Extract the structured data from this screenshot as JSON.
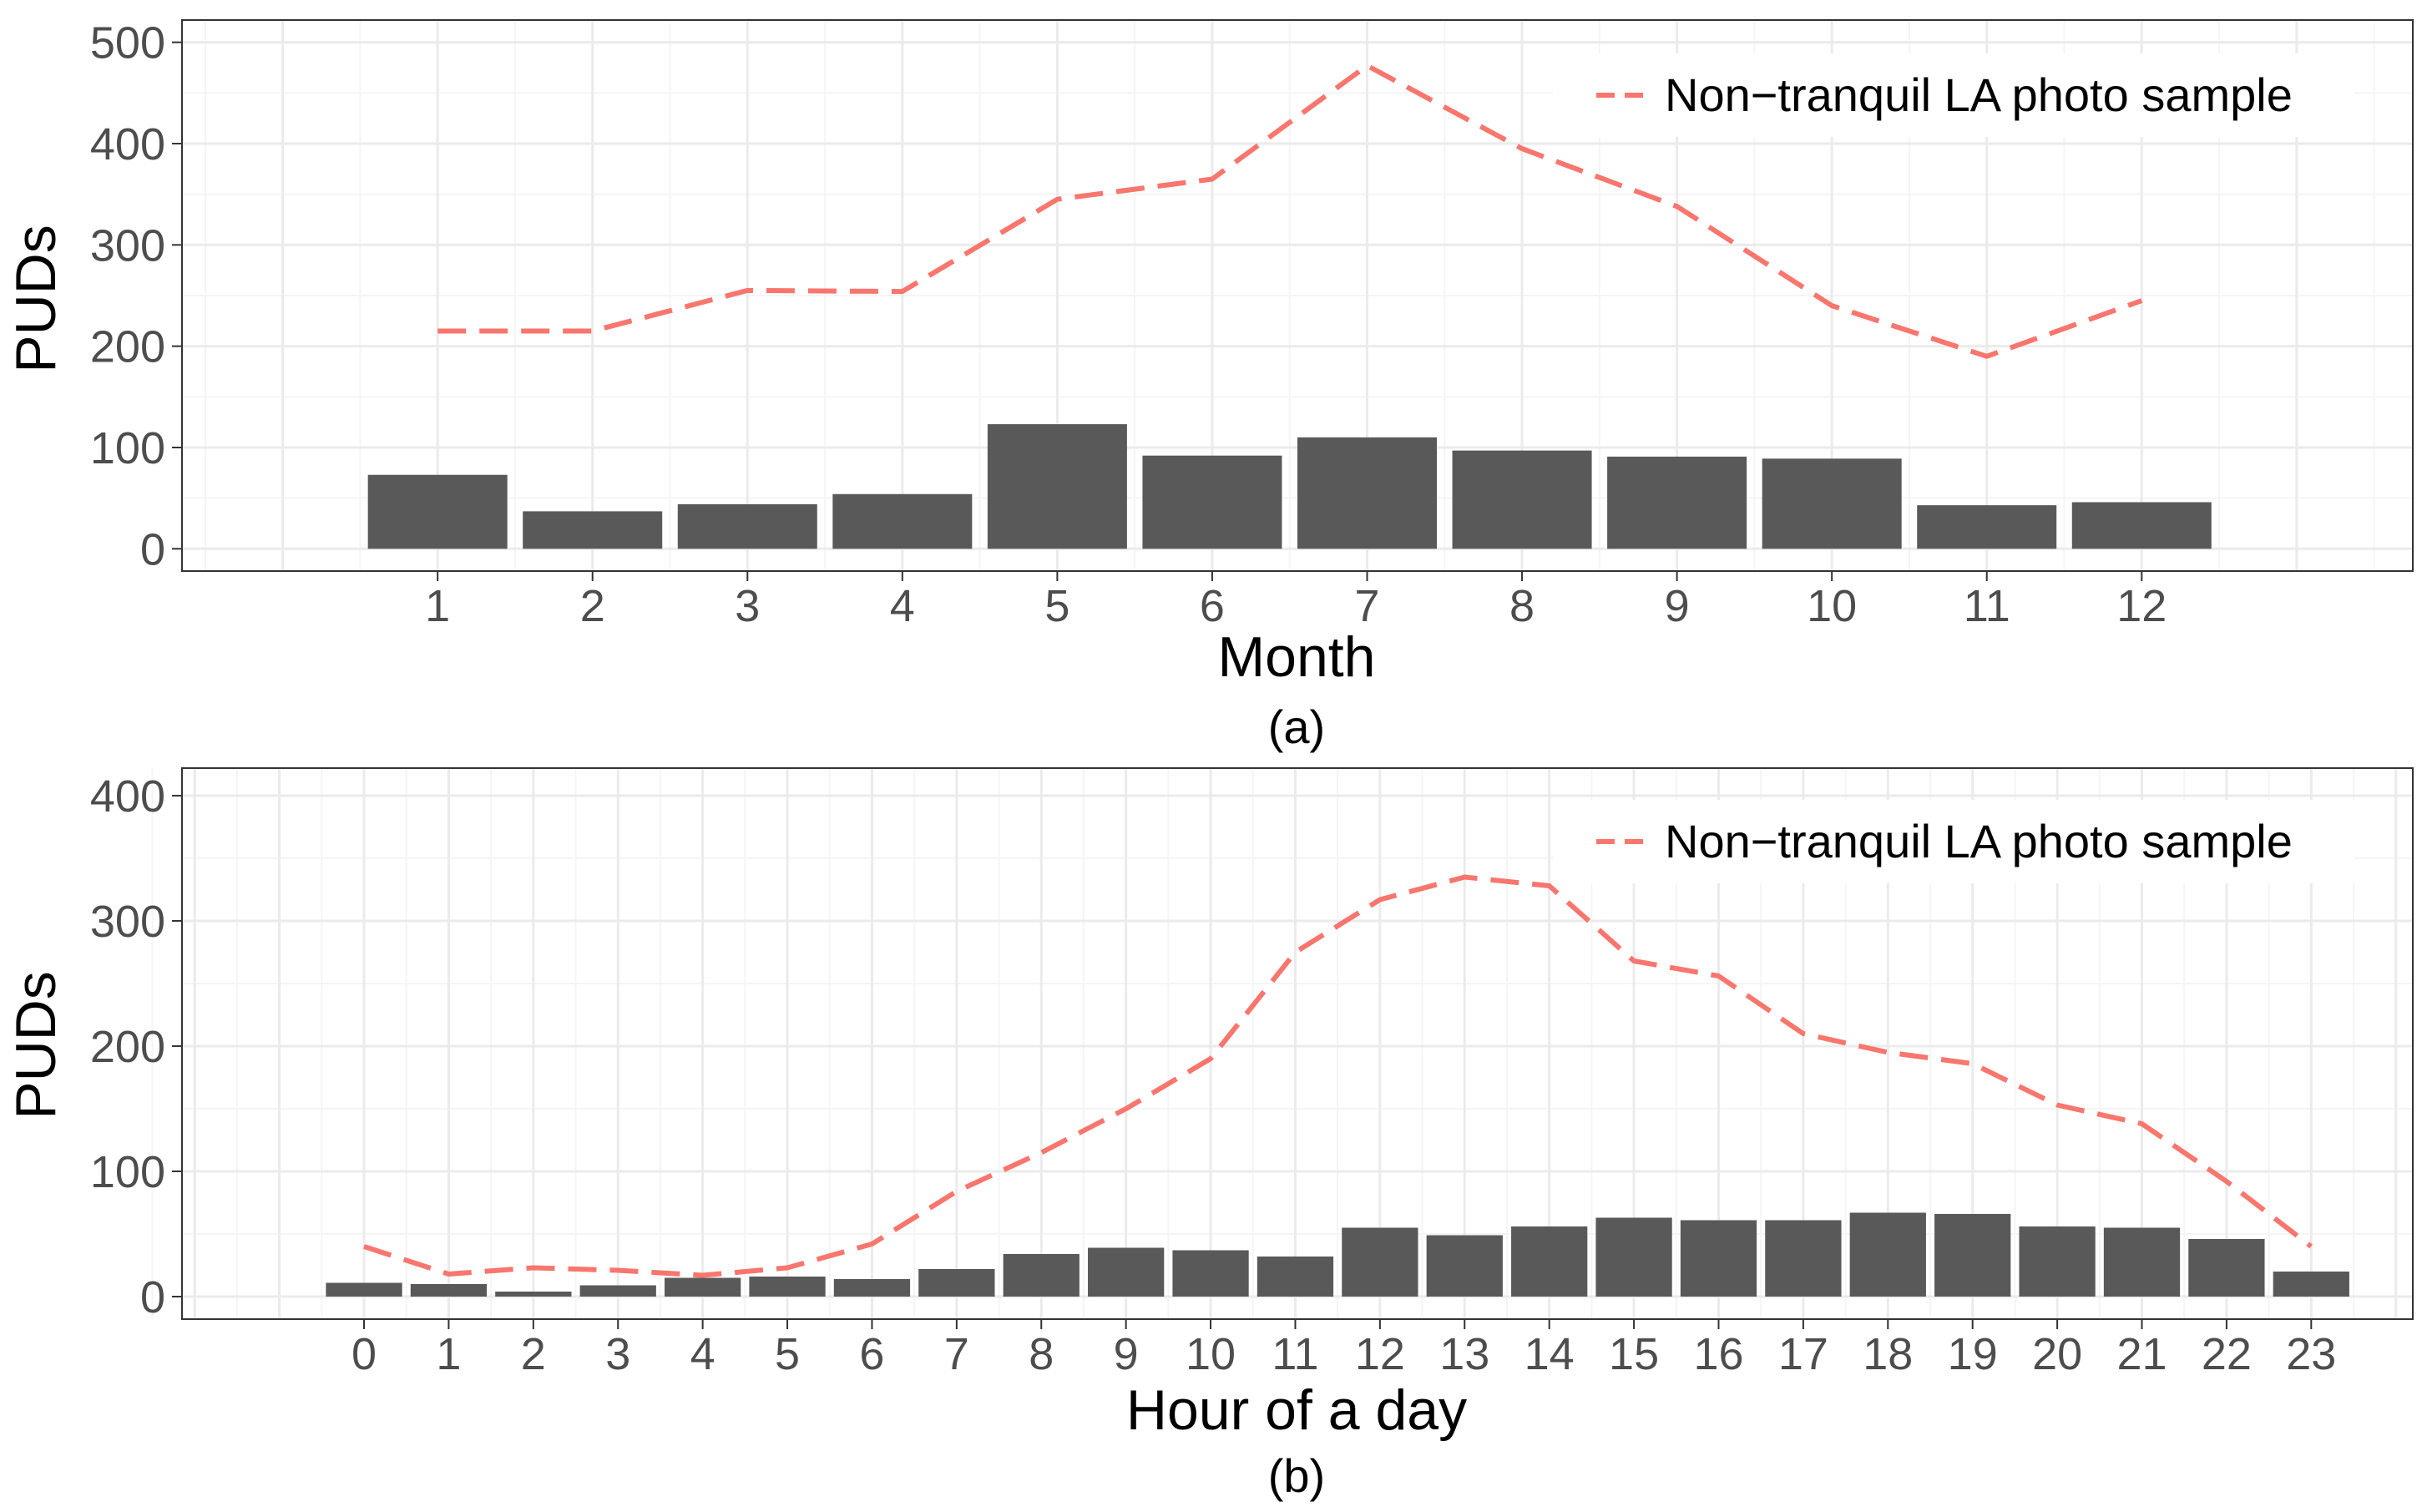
{
  "colors": {
    "bar": "#595959",
    "line": "#F8766D",
    "grid_major": "#EBEBEB",
    "grid_minor": "#F5F5F5",
    "panel_border": "#333333",
    "tick_text": "#4D4D4D"
  },
  "chart_data": [
    {
      "type": "bar",
      "caption": "(a)",
      "xlabel": "Month",
      "ylabel": "PUDs",
      "categories": [
        "1",
        "2",
        "3",
        "4",
        "5",
        "6",
        "7",
        "8",
        "9",
        "10",
        "11",
        "12"
      ],
      "yticks": [
        0,
        100,
        200,
        300,
        400,
        500
      ],
      "ylim": [
        -22,
        522
      ],
      "xlim": [
        -0.65,
        13.75
      ],
      "legend": {
        "position": "top-right",
        "entries": [
          "Non−tranquil LA photo sample"
        ]
      },
      "series": [
        {
          "name": "PUDs (bars)",
          "kind": "bar",
          "values": [
            73,
            37,
            44,
            54,
            123,
            92,
            110,
            97,
            91,
            89,
            43,
            46
          ]
        },
        {
          "name": "Non−tranquil LA photo sample",
          "kind": "line",
          "style": "dashed",
          "values": [
            215,
            215,
            255,
            254,
            345,
            365,
            477,
            395,
            338,
            240,
            190,
            245
          ]
        }
      ]
    },
    {
      "type": "bar",
      "caption": "(b)",
      "xlabel": "Hour of a day",
      "ylabel": "PUDs",
      "categories": [
        "0",
        "1",
        "2",
        "3",
        "4",
        "5",
        "6",
        "7",
        "8",
        "9",
        "10",
        "11",
        "12",
        "13",
        "14",
        "15",
        "16",
        "17",
        "18",
        "19",
        "20",
        "21",
        "22",
        "23"
      ],
      "yticks": [
        0,
        100,
        200,
        300,
        400
      ],
      "ylim": [
        -18,
        422
      ],
      "xlim": [
        -1.15,
        25.2
      ],
      "legend": {
        "position": "top-right",
        "entries": [
          "Non−tranquil LA photo sample"
        ]
      },
      "series": [
        {
          "name": "PUDs (bars)",
          "kind": "bar",
          "values": [
            11,
            10,
            4,
            9,
            15,
            16,
            14,
            22,
            34,
            39,
            37,
            32,
            55,
            49,
            56,
            63,
            61,
            61,
            67,
            66,
            56,
            55,
            46,
            20
          ]
        },
        {
          "name": "Non−tranquil LA photo sample",
          "kind": "line",
          "style": "dashed",
          "values": [
            40,
            18,
            23,
            21,
            17,
            23,
            42,
            84,
            115,
            150,
            190,
            275,
            317,
            335,
            328,
            268,
            256,
            210,
            195,
            186,
            153,
            138,
            92,
            40
          ]
        }
      ]
    }
  ]
}
